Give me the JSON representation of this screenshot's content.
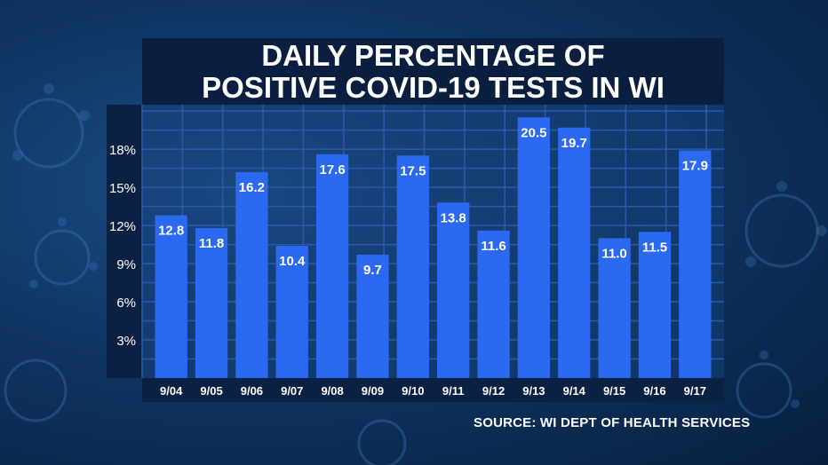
{
  "title_lines": [
    "DAILY PERCENTAGE OF",
    "POSITIVE COVID-19 TESTS IN WI"
  ],
  "source": "SOURCE: WI DEPT OF HEALTH SERVICES",
  "colors": {
    "bar": "#2b6af0",
    "panel": "#0b2144",
    "grid": "#2d5aa8",
    "text": "#ffffff"
  },
  "chart_data": {
    "type": "bar",
    "title": "DAILY PERCENTAGE OF POSITIVE COVID-19 TESTS IN WI",
    "categories": [
      "9/04",
      "9/05",
      "9/06",
      "9/07",
      "9/08",
      "9/09",
      "9/10",
      "9/11",
      "9/12",
      "9/13",
      "9/14",
      "9/15",
      "9/16",
      "9/17"
    ],
    "values": [
      12.8,
      11.8,
      16.2,
      10.4,
      17.6,
      9.7,
      17.5,
      13.8,
      11.6,
      20.5,
      19.7,
      11.0,
      11.5,
      17.9
    ],
    "value_labels": [
      "12.8",
      "11.8",
      "16.2",
      "10.4",
      "17.6",
      "9.7",
      "17.5",
      "13.8",
      "11.6",
      "20.5",
      "19.7",
      "11.0",
      "11.5",
      "17.9"
    ],
    "y_ticks": [
      3,
      6,
      9,
      12,
      15,
      18
    ],
    "y_tick_labels": [
      "3%",
      "6%",
      "9%",
      "12%",
      "15%",
      "18%"
    ],
    "ylim": [
      0,
      21.5
    ],
    "grid": true,
    "legend": "none"
  }
}
